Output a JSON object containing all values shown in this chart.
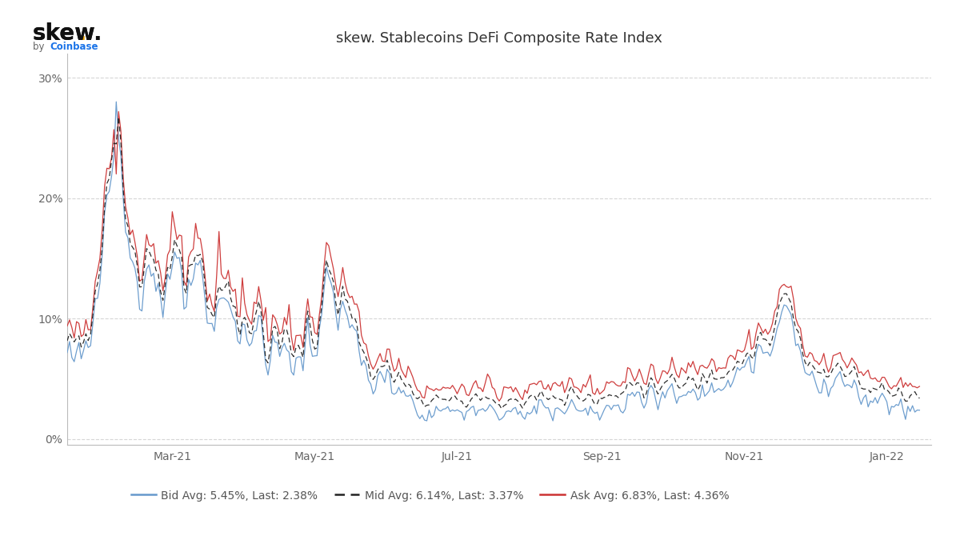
{
  "title": "skew. Stablecoins DeFi Composite Rate Index",
  "bid_label": "Bid Avg: 5.45%, Last: 2.38%",
  "mid_label": "Mid Avg: 6.14%, Last: 3.37%",
  "ask_label": "Ask Avg: 6.83%, Last: 4.36%",
  "bid_color": "#6699cc",
  "mid_color": "#222222",
  "ask_color": "#cc3333",
  "background_color": "#ffffff",
  "grid_color": "#cccccc",
  "yticks": [
    0,
    10,
    20,
    30
  ],
  "ylim": [
    -0.5,
    32
  ],
  "skew_color": "#111111",
  "coinbase_color": "#1a73e8",
  "dot_color": "#f0a500"
}
